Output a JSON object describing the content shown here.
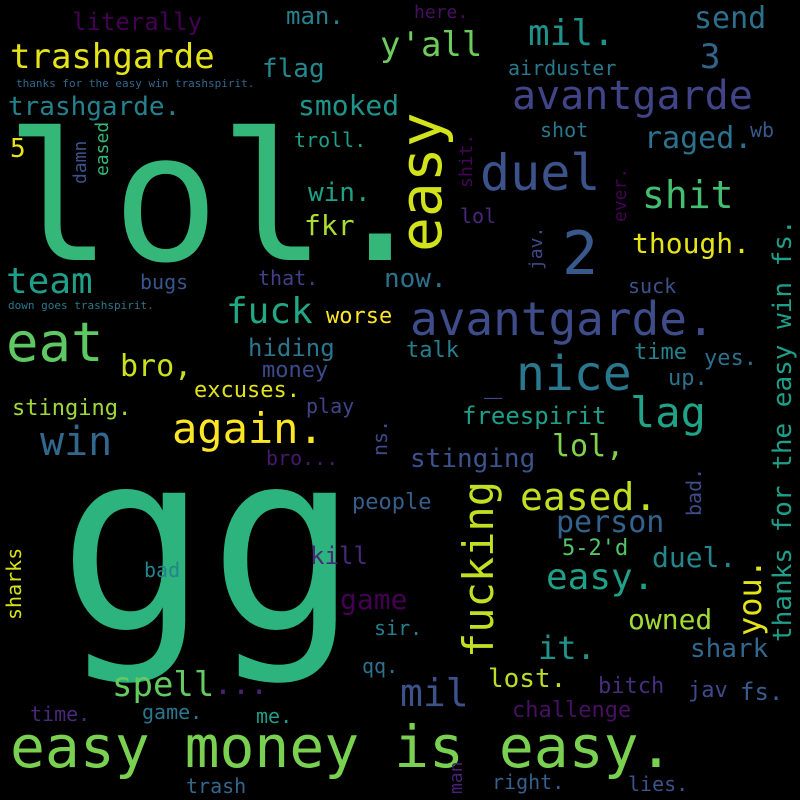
{
  "words": [
    {
      "text": "gg",
      "color": "#2db37d"
    },
    {
      "text": "lol.",
      "color": "#35b779"
    },
    {
      "text": "easy money is easy.",
      "color": "#7ad151"
    },
    {
      "text": "eat",
      "color": "#5ec962"
    },
    {
      "text": "easy",
      "color": "#d2e21b"
    },
    {
      "text": "duel",
      "color": "#3b528b"
    },
    {
      "text": "2",
      "color": "#38598c"
    },
    {
      "text": "avantgarde.",
      "color": "#3e4c8a"
    },
    {
      "text": "avantgarde",
      "color": "#414487"
    },
    {
      "text": "nice",
      "color": "#2a788e"
    },
    {
      "text": "fucking",
      "color": "#c2df23"
    },
    {
      "text": "again.",
      "color": "#fde725"
    },
    {
      "text": "mil",
      "color": "#3b528b"
    },
    {
      "text": "win",
      "color": "#31688e"
    },
    {
      "text": "lag",
      "color": "#20a386"
    },
    {
      "text": "trashgarde",
      "color": "#e5e419"
    },
    {
      "text": "team",
      "color": "#1f9e89"
    },
    {
      "text": "fuck",
      "color": "#22a884"
    },
    {
      "text": "shit",
      "color": "#44bf70"
    },
    {
      "text": "eased.",
      "color": "#c2df23"
    },
    {
      "text": "easy.",
      "color": "#1fa088"
    },
    {
      "text": "mil.",
      "color": "#21918c"
    },
    {
      "text": "y'all",
      "color": "#6ccd5a"
    },
    {
      "text": "spell",
      "color": "#63cb5f"
    },
    {
      "text": "you.",
      "color": "#e5e419"
    },
    {
      "text": "thanks for the easy win fs.",
      "color": "#1f9e89"
    },
    {
      "text": "bro,",
      "color": "#cae11f"
    },
    {
      "text": "trashgarde.",
      "color": "#26818e"
    },
    {
      "text": "smoked",
      "color": "#1f948c"
    },
    {
      "text": "raged.",
      "color": "#2c728e"
    },
    {
      "text": "though.",
      "color": "#e5e419"
    },
    {
      "text": "send",
      "color": "#2d708e"
    },
    {
      "text": "person",
      "color": "#33638d"
    },
    {
      "text": "duel.",
      "color": "#24868e"
    },
    {
      "text": "lol,",
      "color": "#7fd34e"
    },
    {
      "text": "3",
      "color": "#32658e"
    },
    {
      "text": "it.",
      "color": "#21918c"
    },
    {
      "text": "...",
      "color": "#482173"
    },
    {
      "text": "_",
      "color": "#3f4889"
    },
    {
      "text": "owned",
      "color": "#a2da37"
    },
    {
      "text": "win.",
      "color": "#1fa187"
    },
    {
      "text": "stinging",
      "color": "#3b528b"
    },
    {
      "text": "stinging.",
      "color": "#a0da39"
    },
    {
      "text": "freespirit",
      "color": "#1f9e89"
    },
    {
      "text": "game",
      "color": "#440154"
    },
    {
      "text": "fkr",
      "color": "#aadc32"
    },
    {
      "text": "hiding",
      "color": "#2a768e"
    },
    {
      "text": "flag",
      "color": "#23898e"
    },
    {
      "text": "lost.",
      "color": "#bade28"
    },
    {
      "text": "shark",
      "color": "#31688e"
    },
    {
      "text": "now.",
      "color": "#2c718e"
    },
    {
      "text": "jav",
      "color": "#3e4a89"
    },
    {
      "text": "man.",
      "color": "#26818e"
    },
    {
      "text": "excuses.",
      "color": "#e2e418"
    },
    {
      "text": "fs.",
      "color": "#365d8d"
    },
    {
      "text": "5-2'd",
      "color": "#52c569"
    },
    {
      "text": "literally",
      "color": "#440154"
    },
    {
      "text": "challenge",
      "color": "#471063"
    },
    {
      "text": "5",
      "color": "#e5e419"
    },
    {
      "text": "time",
      "color": "#25838e"
    },
    {
      "text": "bitch",
      "color": "#472d7b"
    },
    {
      "text": "airduster",
      "color": "#2a788e"
    },
    {
      "text": "bro...",
      "color": "#48186a"
    },
    {
      "text": "money",
      "color": "#3e4a89"
    },
    {
      "text": "kill",
      "color": "#482878"
    },
    {
      "text": "people",
      "color": "#355f8d"
    },
    {
      "text": "worse",
      "color": "#fde725"
    },
    {
      "text": "talk",
      "color": "#277f8e"
    },
    {
      "text": "yes.",
      "color": "#2d708e"
    },
    {
      "text": "bugs",
      "color": "#39568c"
    },
    {
      "text": "shot",
      "color": "#2a788e"
    },
    {
      "text": "wb",
      "color": "#38598c"
    },
    {
      "text": "up.",
      "color": "#2c728e"
    },
    {
      "text": "troll.",
      "color": "#1f9e89"
    },
    {
      "text": "here.",
      "color": "#471063"
    },
    {
      "text": "lies.",
      "color": "#3b528b"
    },
    {
      "text": "right.",
      "color": "#355f8d"
    },
    {
      "text": "trash",
      "color": "#31688e"
    },
    {
      "text": "man",
      "color": "#482173"
    },
    {
      "text": "me.",
      "color": "#1f9e89"
    },
    {
      "text": "game.",
      "color": "#2a788e"
    },
    {
      "text": "time.",
      "color": "#482878"
    },
    {
      "text": "qq.",
      "color": "#2c728e"
    },
    {
      "text": "sir.",
      "color": "#277f8e"
    },
    {
      "text": "bad",
      "color": "#25838e"
    },
    {
      "text": "bad.",
      "color": "#3e4c8a"
    },
    {
      "text": "play",
      "color": "#414487"
    },
    {
      "text": "lol",
      "color": "#482878"
    },
    {
      "text": "that.",
      "color": "#424086"
    },
    {
      "text": "suck",
      "color": "#3b528b"
    },
    {
      "text": "ns.",
      "color": "#3e4a89"
    },
    {
      "text": "jav.",
      "color": "#3e4a89"
    },
    {
      "text": "shit.",
      "color": "#450457"
    },
    {
      "text": "ever.",
      "color": "#440154"
    },
    {
      "text": "damn",
      "color": "#3b528b"
    },
    {
      "text": "eased",
      "color": "#35b779"
    },
    {
      "text": "sharks",
      "color": "#d5e21a"
    },
    {
      "text": "thanks for the easy win trashspirit.",
      "color": "#31688e"
    },
    {
      "text": "down goes trashspirit.",
      "color": "#2a788e"
    }
  ]
}
